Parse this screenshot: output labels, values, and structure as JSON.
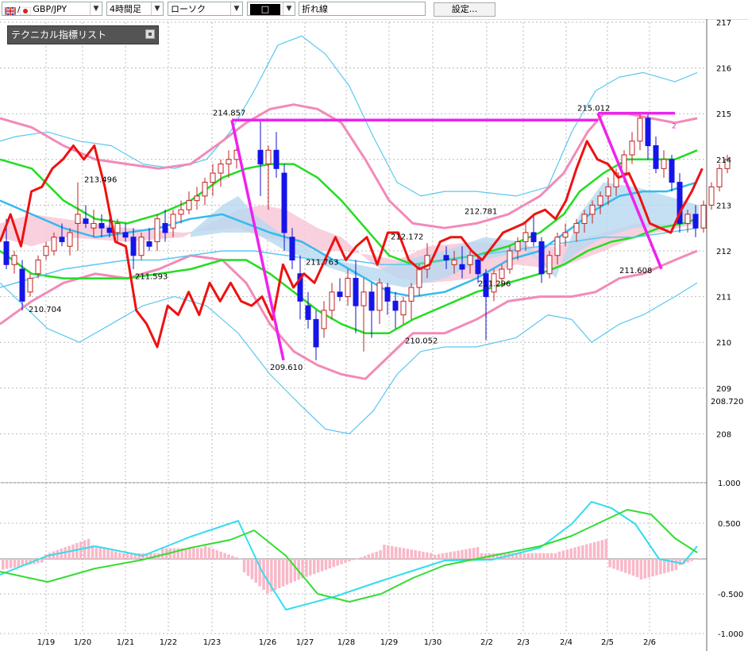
{
  "toolbar": {
    "pair": "GBP/JPY",
    "timeframe": "4時間足",
    "chart_style": "ローソク",
    "color_box": "□",
    "drawing_tool": "折れ線",
    "settings_label": "設定..."
  },
  "indicator_panel": {
    "title": "テクニカル指標リスト"
  },
  "colors": {
    "bull": "#e03030",
    "bear": "#1515e8",
    "bb_outer": "#5bc8f0",
    "bb_mid": "#f28ab8",
    "ma_green": "#22dd22",
    "ma_cyan": "#33bbee",
    "zigzag": "#ee1111",
    "trend_magenta": "#ee22ee",
    "cloud_pink": "#f8c8d8",
    "cloud_blue": "#b8d8f0",
    "macd_line": "#33ddee",
    "signal_line": "#33dd33",
    "hist": "#f9b8c8"
  },
  "chart_data": {
    "type": "line",
    "title": "",
    "price_axis": {
      "ticks": [
        "217",
        "216",
        "215",
        "214",
        "213",
        "212",
        "211",
        "210",
        "209",
        "208"
      ],
      "ylim": [
        207.4,
        217.3
      ]
    },
    "current_price_label": "208.720",
    "date_labels": [
      "1/19",
      "1/20",
      "1/21",
      "1/22",
      "1/23",
      "1/26",
      "1/27",
      "1/28",
      "1/29",
      "1/30",
      "2/2",
      "2/3",
      "2/4",
      "2/5",
      "2/6"
    ],
    "price_annotations": [
      "214.857",
      "213.496",
      "211.593",
      "210.704",
      "209.610",
      "211.763",
      "212.172",
      "210.052",
      "212.781",
      "211.296",
      "215.012",
      "211.608"
    ],
    "trendline_label": "2",
    "candles": [
      [
        212.2,
        212.7,
        211.6,
        211.7
      ],
      [
        211.7,
        212.0,
        211.5,
        211.9
      ],
      [
        211.6,
        211.8,
        210.7,
        210.9
      ],
      [
        211.1,
        211.5,
        211.0,
        211.4
      ],
      [
        211.5,
        211.9,
        211.4,
        211.8
      ],
      [
        211.9,
        212.2,
        211.8,
        212.1
      ],
      [
        212.0,
        212.4,
        211.9,
        212.3
      ],
      [
        212.3,
        212.6,
        212.1,
        212.2
      ],
      [
        212.1,
        212.5,
        211.9,
        212.4
      ],
      [
        212.6,
        213.5,
        212.0,
        212.8
      ],
      [
        212.7,
        213.0,
        212.5,
        212.6
      ],
      [
        212.5,
        212.9,
        212.3,
        212.6
      ],
      [
        212.6,
        212.8,
        212.3,
        212.5
      ],
      [
        212.5,
        212.7,
        212.3,
        212.4
      ],
      [
        212.4,
        212.7,
        212.2,
        212.6
      ],
      [
        212.4,
        212.6,
        212.2,
        212.3
      ],
      [
        212.3,
        212.5,
        211.6,
        211.9
      ],
      [
        211.9,
        212.4,
        211.8,
        212.3
      ],
      [
        212.2,
        212.5,
        212.0,
        212.1
      ],
      [
        212.2,
        212.8,
        212.0,
        212.7
      ],
      [
        212.6,
        212.9,
        212.2,
        212.4
      ],
      [
        212.5,
        212.9,
        212.3,
        212.8
      ],
      [
        212.8,
        213.1,
        212.6,
        212.9
      ],
      [
        212.9,
        213.3,
        212.8,
        213.1
      ],
      [
        213.1,
        213.4,
        212.9,
        213.2
      ],
      [
        213.2,
        213.6,
        213.0,
        213.5
      ],
      [
        213.5,
        213.9,
        213.2,
        213.7
      ],
      [
        213.7,
        214.0,
        213.4,
        213.9
      ],
      [
        213.9,
        214.2,
        213.6,
        214.0
      ],
      [
        214.0,
        214.4,
        213.8,
        214.2
      ],
      [
        214.2,
        214.86,
        213.2,
        213.9
      ],
      [
        213.9,
        214.3,
        212.9,
        214.2
      ],
      [
        214.2,
        214.6,
        213.6,
        213.8
      ],
      [
        213.7,
        213.9,
        212.0,
        212.4
      ],
      [
        212.3,
        212.5,
        211.6,
        211.8
      ],
      [
        211.5,
        211.9,
        210.5,
        210.9
      ],
      [
        210.8,
        211.1,
        210.3,
        210.5
      ],
      [
        210.5,
        210.7,
        209.61,
        209.9
      ],
      [
        210.3,
        210.9,
        210.1,
        210.7
      ],
      [
        210.7,
        211.3,
        210.5,
        211.1
      ],
      [
        211.1,
        211.4,
        210.9,
        211.0
      ],
      [
        211.0,
        211.6,
        210.8,
        211.4
      ],
      [
        211.4,
        211.8,
        210.2,
        210.8
      ],
      [
        210.8,
        211.4,
        209.8,
        211.1
      ],
      [
        211.1,
        211.3,
        210.1,
        210.7
      ],
      [
        210.7,
        211.4,
        210.4,
        211.3
      ],
      [
        211.2,
        211.3,
        210.6,
        210.9
      ],
      [
        210.9,
        211.1,
        210.3,
        210.7
      ],
      [
        210.6,
        211.0,
        210.4,
        210.9
      ],
      [
        210.9,
        211.3,
        210.5,
        211.2
      ],
      [
        211.2,
        211.7,
        211.0,
        211.6
      ],
      [
        211.6,
        212.17,
        211.4,
        211.9
      ],
      [
        211.9,
        212.1,
        211.6,
        211.8
      ],
      [
        211.7,
        212.0,
        211.5,
        211.8
      ],
      [
        211.7,
        212.1,
        211.4,
        211.6
      ],
      [
        211.7,
        212.0,
        211.5,
        211.9
      ],
      [
        211.8,
        211.9,
        211.3,
        211.5
      ],
      [
        211.5,
        211.6,
        210.05,
        211.0
      ],
      [
        211.1,
        211.6,
        210.9,
        211.5
      ],
      [
        211.4,
        211.7,
        211.2,
        211.6
      ],
      [
        211.6,
        212.1,
        211.5,
        212.0
      ],
      [
        212.0,
        212.3,
        211.8,
        212.2
      ],
      [
        212.2,
        212.6,
        212.0,
        212.4
      ],
      [
        212.4,
        212.78,
        212.1,
        212.2
      ],
      [
        212.2,
        212.3,
        211.3,
        211.5
      ],
      [
        211.5,
        212.0,
        211.4,
        211.9
      ],
      [
        211.9,
        212.4,
        211.7,
        212.3
      ],
      [
        212.3,
        212.6,
        212.1,
        212.4
      ],
      [
        212.4,
        212.7,
        212.2,
        212.6
      ],
      [
        212.6,
        212.9,
        212.4,
        212.8
      ],
      [
        212.8,
        213.1,
        212.6,
        213.0
      ],
      [
        213.0,
        213.3,
        212.8,
        213.2
      ],
      [
        213.2,
        213.6,
        213.0,
        213.4
      ],
      [
        213.4,
        213.8,
        213.2,
        213.7
      ],
      [
        213.7,
        214.2,
        213.5,
        214.1
      ],
      [
        214.1,
        214.6,
        213.9,
        214.4
      ],
      [
        214.4,
        215.01,
        214.2,
        214.9
      ],
      [
        214.9,
        215.0,
        214.0,
        214.3
      ],
      [
        214.3,
        214.5,
        213.7,
        213.8
      ],
      [
        213.8,
        214.2,
        213.6,
        214.0
      ],
      [
        214.0,
        214.1,
        213.3,
        213.5
      ],
      [
        213.5,
        213.7,
        212.4,
        212.6
      ],
      [
        212.6,
        212.9,
        212.4,
        212.8
      ],
      [
        212.8,
        213.0,
        212.3,
        212.5
      ],
      [
        212.5,
        213.1,
        212.4,
        213.0
      ],
      [
        213.0,
        213.5,
        212.9,
        213.4
      ],
      [
        213.4,
        213.9,
        213.3,
        213.8
      ],
      [
        213.8,
        214.1,
        213.7,
        214.0
      ]
    ],
    "zigzag": [
      [
        0,
        212.2
      ],
      [
        2,
        212.8
      ],
      [
        4,
        212.1
      ],
      [
        6,
        213.3
      ],
      [
        8,
        213.4
      ],
      [
        10,
        213.8
      ],
      [
        12,
        214.0
      ],
      [
        14,
        214.3
      ],
      [
        16,
        214.0
      ],
      [
        18,
        214.3
      ],
      [
        20,
        213.4
      ],
      [
        22,
        212.2
      ],
      [
        24,
        212.1
      ],
      [
        26,
        210.7
      ],
      [
        28,
        210.4
      ],
      [
        30,
        209.9
      ],
      [
        32,
        210.8
      ],
      [
        34,
        210.6
      ],
      [
        36,
        211.1
      ],
      [
        38,
        210.6
      ],
      [
        40,
        211.3
      ],
      [
        42,
        210.9
      ],
      [
        44,
        211.3
      ],
      [
        46,
        210.9
      ],
      [
        48,
        210.8
      ],
      [
        50,
        211.0
      ],
      [
        52,
        210.5
      ],
      [
        54,
        211.7
      ],
      [
        56,
        211.2
      ],
      [
        58,
        211.5
      ],
      [
        60,
        211.3
      ],
      [
        62,
        211.8
      ],
      [
        64,
        212.3
      ],
      [
        66,
        211.8
      ],
      [
        68,
        212.1
      ],
      [
        70,
        212.3
      ],
      [
        72,
        211.7
      ],
      [
        74,
        212.4
      ],
      [
        76,
        212.4
      ],
      [
        78,
        211.8
      ],
      [
        80,
        211.6
      ],
      [
        82,
        211.7
      ],
      [
        84,
        212.2
      ],
      [
        86,
        212.3
      ],
      [
        88,
        212.3
      ],
      [
        90,
        212.0
      ],
      [
        92,
        211.8
      ],
      [
        94,
        212.1
      ],
      [
        96,
        212.4
      ],
      [
        98,
        212.5
      ],
      [
        100,
        212.6
      ],
      [
        102,
        212.8
      ],
      [
        104,
        212.9
      ],
      [
        106,
        212.7
      ],
      [
        108,
        213.1
      ],
      [
        110,
        213.8
      ],
      [
        112,
        214.4
      ],
      [
        114,
        214.0
      ],
      [
        116,
        213.9
      ],
      [
        118,
        213.6
      ],
      [
        120,
        213.7
      ],
      [
        122,
        213.2
      ],
      [
        124,
        212.6
      ],
      [
        126,
        212.5
      ],
      [
        128,
        212.4
      ],
      [
        130,
        212.9
      ],
      [
        132,
        213.3
      ],
      [
        134,
        213.8
      ]
    ]
  }
}
